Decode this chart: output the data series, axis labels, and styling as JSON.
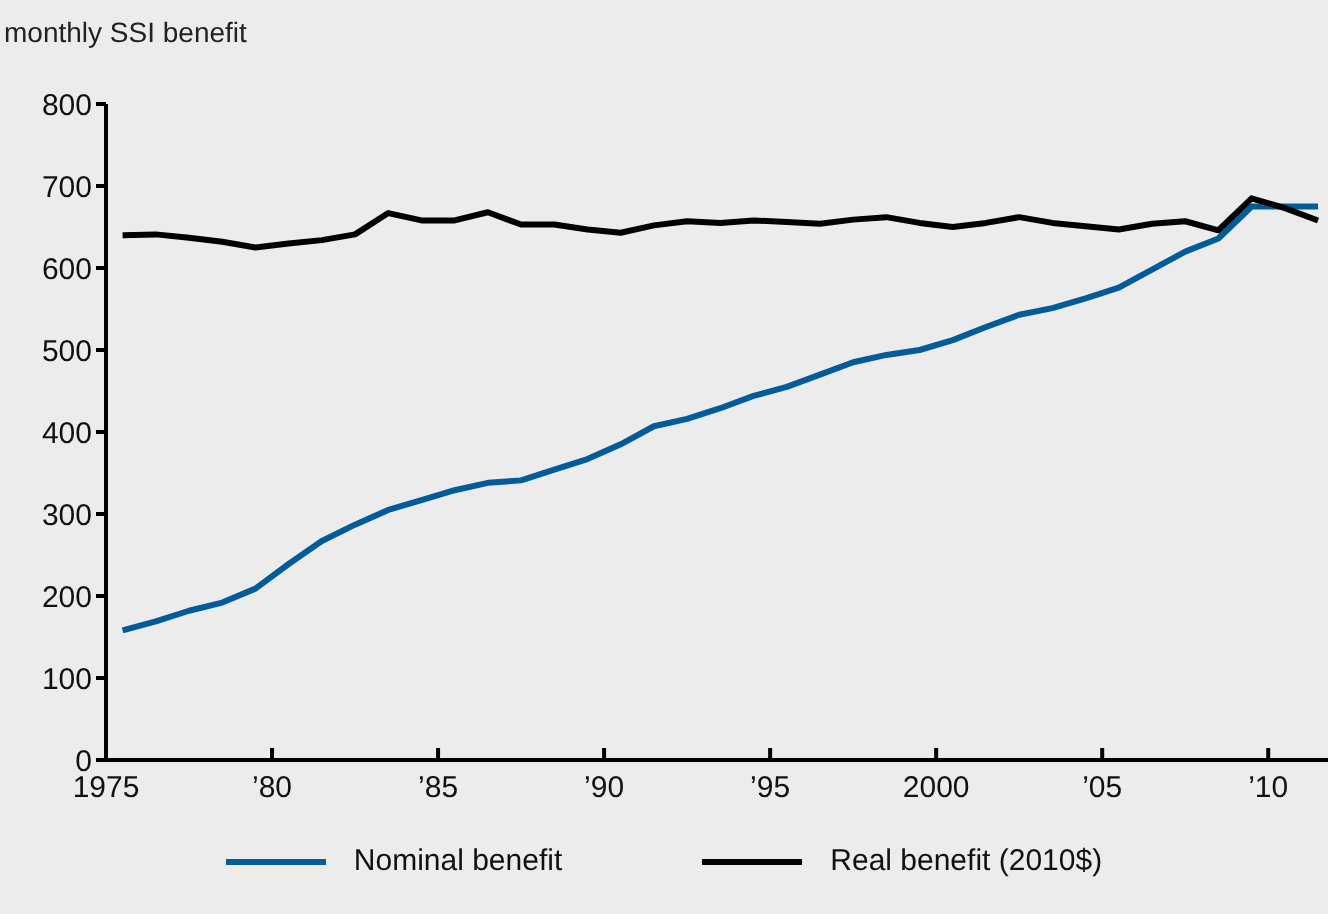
{
  "chart_data": {
    "type": "line",
    "ylabel": "monthly SSI benefit",
    "x": [
      1975.5,
      1976.5,
      1977.5,
      1978.5,
      1979.5,
      1980.5,
      1981.5,
      1982.5,
      1983.5,
      1984.5,
      1985.5,
      1986.5,
      1987.5,
      1988.5,
      1989.5,
      1990.5,
      1991.5,
      1992.5,
      1993.5,
      1994.5,
      1995.5,
      1996.5,
      1997.5,
      1998.5,
      1999.5,
      2000.5,
      2001.5,
      2002.5,
      2003.5,
      2004.5,
      2005.5,
      2006.5,
      2007.5,
      2008.5,
      2009.5,
      2010.5,
      2011.5
    ],
    "series": [
      {
        "name": "Nominal benefit",
        "color": "#005b9a",
        "values": [
          158,
          169,
          182,
          192,
          209,
          239,
          267,
          287,
          305,
          317,
          329,
          338,
          341,
          354,
          367,
          385,
          407,
          416,
          429,
          444,
          455,
          470,
          485,
          494,
          500,
          512,
          528,
          543,
          551,
          563,
          576,
          598,
          620,
          636,
          675,
          675,
          675
        ]
      },
      {
        "name": "Real benefit (2010$)",
        "color": "#000000",
        "values": [
          640,
          641,
          637,
          632,
          625,
          630,
          634,
          641,
          667,
          658,
          658,
          668,
          653,
          653,
          647,
          643,
          652,
          657,
          655,
          658,
          656,
          654,
          659,
          662,
          655,
          650,
          655,
          662,
          655,
          651,
          647,
          654,
          657,
          646,
          685,
          673,
          658
        ]
      }
    ],
    "xlim": [
      1975,
      2011.8
    ],
    "xticks": [
      1975,
      {
        "value": 1980,
        "label": "’80"
      },
      {
        "value": 1985,
        "label": "’85"
      },
      {
        "value": 1990,
        "label": "’90"
      },
      {
        "value": 1995,
        "label": "’95"
      },
      2000,
      {
        "value": 2005,
        "label": "’05"
      },
      {
        "value": 2010,
        "label": "’10"
      }
    ],
    "ylim": [
      0,
      800
    ],
    "yticks": [
      0,
      100,
      200,
      300,
      400,
      500,
      600,
      700,
      800
    ],
    "grid": false,
    "legend": "bottom",
    "marker": "none",
    "line_style": "solid"
  }
}
